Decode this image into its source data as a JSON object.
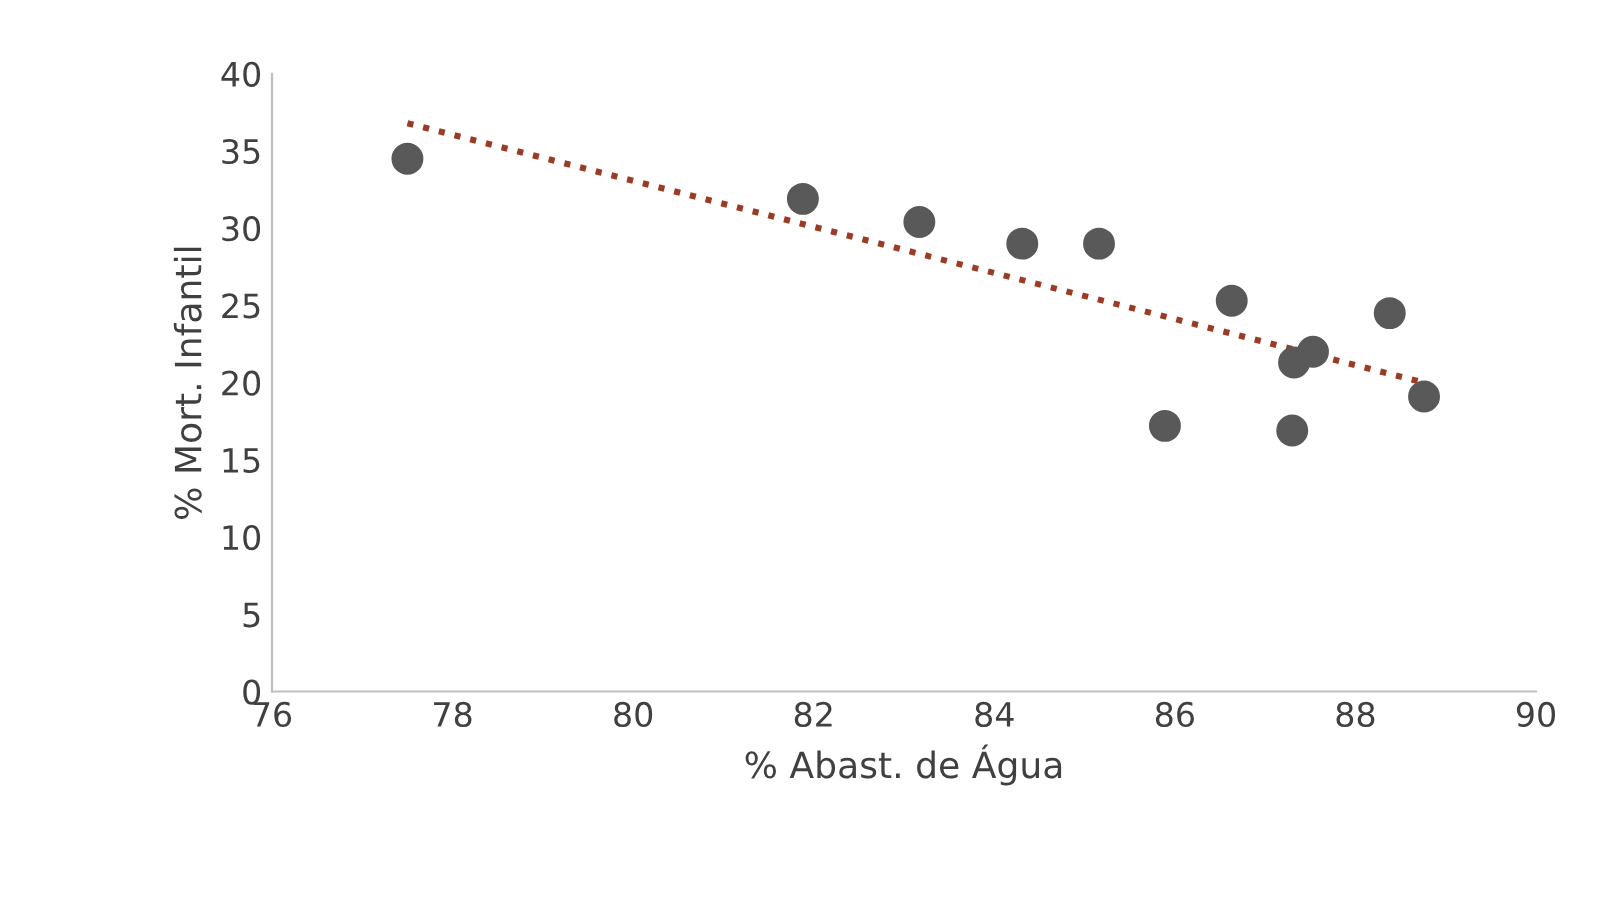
{
  "chart_data": {
    "type": "scatter",
    "xlabel": "% Abast. de Água",
    "ylabel": "% Mort. Infantil",
    "series": [
      {
        "color": "#595959",
        "x": [
          77.5,
          81.88,
          83.17,
          84.31,
          85.16,
          85.89,
          86.63,
          87.32,
          87.53,
          87.3,
          88.38,
          88.76
        ],
        "values": [
          34.5,
          31.9,
          30.4,
          29.0,
          29.0,
          17.2,
          25.3,
          21.3,
          22.0,
          16.9,
          24.5,
          19.1
        ],
        "marker": "circle"
      },
      {
        "type": "line",
        "color": "#9c3a25",
        "x": [
          77.5,
          88.76
        ],
        "values": [
          36.8,
          20.0
        ],
        "line_style": "dotted",
        "marker": "none"
      }
    ],
    "xlim": [
      76,
      90
    ],
    "xticks": [
      76,
      78,
      80,
      82,
      84,
      86,
      88,
      90
    ],
    "ylim": [
      0,
      40
    ],
    "yticks": [
      0,
      5,
      10,
      15,
      20,
      25,
      30,
      35,
      40
    ],
    "grid": false,
    "legend": false
  }
}
